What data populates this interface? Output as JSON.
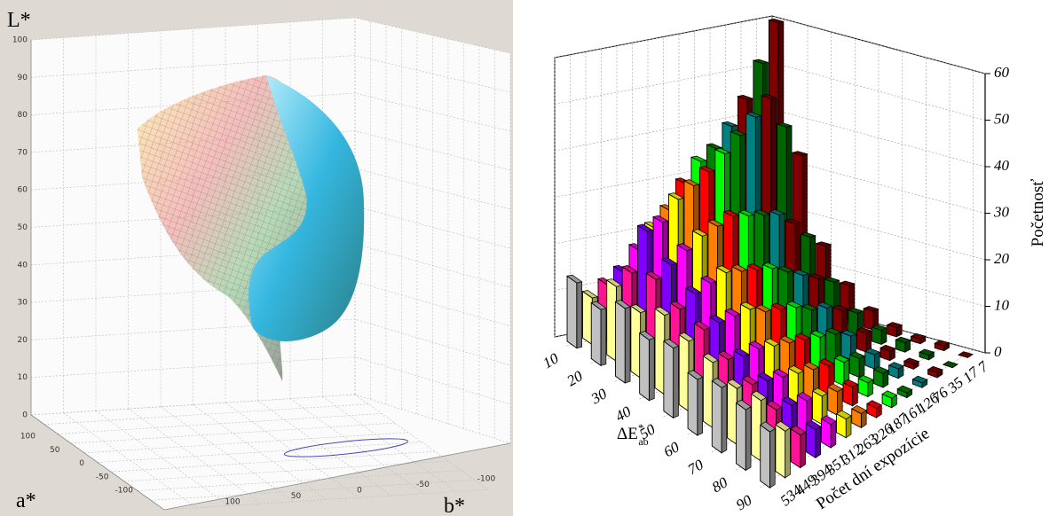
{
  "chart_data": [
    {
      "type": "surface3d",
      "zlabel": "L*",
      "xlabel": "a*",
      "ylabel": "b*",
      "zlim": [
        0,
        100
      ],
      "zticks": [
        0,
        10,
        20,
        30,
        40,
        50,
        60,
        70,
        80,
        90,
        100
      ],
      "xlim": [
        100,
        -100
      ],
      "xticks": [
        100,
        50,
        0,
        -50,
        -100
      ],
      "ylim": [
        100,
        -100
      ],
      "yticks": [
        100,
        50,
        0,
        -50,
        -100
      ]
    },
    {
      "type": "bar3d",
      "xlabel": {
        "main": "ΔE",
        "sup": "*",
        "sub": "ab"
      },
      "ylabel": "Počet dní expozície",
      "zlabel": "Početnosť",
      "x": [
        10,
        20,
        30,
        40,
        50,
        60,
        70,
        80,
        90
      ],
      "xlim": [
        5,
        95
      ],
      "xticks": [
        10,
        20,
        30,
        40,
        50,
        60,
        70,
        80,
        90
      ],
      "zlim": [
        0,
        60
      ],
      "zticks": [
        0,
        10,
        20,
        30,
        40,
        50,
        60
      ],
      "series": [
        {
          "name": "534",
          "color": "#c0c0c0",
          "values": [
            14,
            12,
            16,
            13,
            15,
            12,
            14,
            13,
            12
          ]
        },
        {
          "name": "449",
          "color": "#ffff99",
          "values": [
            10,
            16,
            14,
            17,
            15,
            14,
            12,
            13,
            10
          ]
        },
        {
          "name": "394",
          "color": "#ff1493",
          "values": [
            12,
            18,
            20,
            17,
            16,
            13,
            11,
            9,
            7
          ]
        },
        {
          "name": "351",
          "color": "#8000ff",
          "values": [
            14,
            26,
            22,
            19,
            16,
            12,
            10,
            8,
            6
          ]
        },
        {
          "name": "312",
          "color": "#ff00ff",
          "values": [
            18,
            27,
            24,
            20,
            16,
            12,
            9,
            7,
            5
          ]
        },
        {
          "name": "263",
          "color": "#ffff00",
          "values": [
            22,
            31,
            26,
            21,
            16,
            11,
            8,
            6,
            4
          ]
        },
        {
          "name": "226",
          "color": "#ff8000",
          "values": [
            25,
            33,
            27,
            20,
            14,
            10,
            7,
            5,
            3
          ]
        },
        {
          "name": "187",
          "color": "#ff0000",
          "values": [
            30,
            35,
            28,
            19,
            13,
            9,
            6,
            4,
            2
          ]
        },
        {
          "name": "161",
          "color": "#00ff00",
          "values": [
            34,
            38,
            27,
            18,
            12,
            8,
            5,
            3,
            2
          ]
        },
        {
          "name": "126",
          "color": "#008000",
          "values": [
            36,
            41,
            26,
            16,
            10,
            7,
            4,
            3,
            1
          ]
        },
        {
          "name": "76",
          "color": "#008080",
          "values": [
            40,
            44,
            25,
            14,
            9,
            5,
            3,
            2,
            1
          ]
        },
        {
          "name": "35",
          "color": "#800000",
          "values": [
            45,
            47,
            22,
            12,
            7,
            4,
            2,
            1,
            1
          ]
        },
        {
          "name": "17",
          "color": "#006400",
          "values": [
            52,
            40,
            18,
            10,
            5,
            3,
            2,
            1,
            0
          ]
        },
        {
          "name": "7",
          "color": "#800000",
          "values": [
            60,
            33,
            15,
            8,
            4,
            2,
            1,
            1,
            0
          ]
        }
      ]
    }
  ]
}
